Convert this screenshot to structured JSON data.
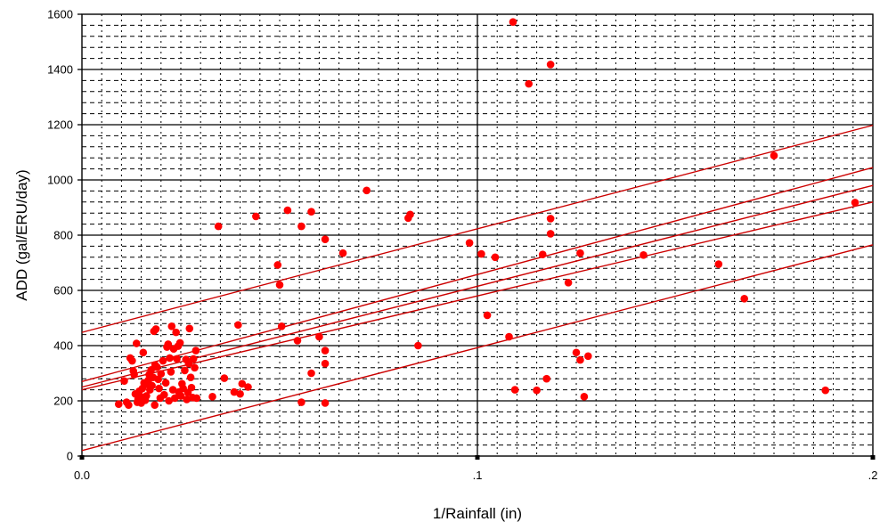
{
  "chart_data": {
    "type": "scatter",
    "title": "",
    "xlabel": "1/Rainfall (in)",
    "ylabel": "ADD (gal/ERU/day)",
    "xlim": [
      0,
      0.2
    ],
    "ylim": [
      0,
      1600
    ],
    "x_ticks": [
      {
        "value": 0.0,
        "label": "0.0"
      },
      {
        "value": 0.1,
        "label": ".1"
      },
      {
        "value": 0.2,
        "label": ".2"
      }
    ],
    "y_ticks": [
      {
        "value": 0,
        "label": "0"
      },
      {
        "value": 200,
        "label": "200"
      },
      {
        "value": 400,
        "label": "400"
      },
      {
        "value": 600,
        "label": "600"
      },
      {
        "value": 800,
        "label": "800"
      },
      {
        "value": 1000,
        "label": "1000"
      },
      {
        "value": 1200,
        "label": "1200"
      },
      {
        "value": 1400,
        "label": "1400"
      },
      {
        "value": 1600,
        "label": "1600"
      }
    ],
    "grid": true,
    "colors": {
      "points": "#ff0000",
      "lines": "#cc0000",
      "major_grid": "#000000",
      "minor_grid": "#000000"
    },
    "points": [
      [
        0.0093,
        188
      ],
      [
        0.0107,
        272
      ],
      [
        0.0113,
        195
      ],
      [
        0.0118,
        185
      ],
      [
        0.0122,
        355
      ],
      [
        0.0127,
        345
      ],
      [
        0.013,
        308
      ],
      [
        0.0132,
        295
      ],
      [
        0.0135,
        225
      ],
      [
        0.0138,
        408
      ],
      [
        0.014,
        195
      ],
      [
        0.0142,
        205
      ],
      [
        0.0145,
        235
      ],
      [
        0.0148,
        215
      ],
      [
        0.015,
        192
      ],
      [
        0.0153,
        245
      ],
      [
        0.0155,
        375
      ],
      [
        0.0157,
        265
      ],
      [
        0.016,
        202
      ],
      [
        0.0163,
        218
      ],
      [
        0.0165,
        260
      ],
      [
        0.0168,
        275
      ],
      [
        0.017,
        295
      ],
      [
        0.0172,
        240
      ],
      [
        0.0175,
        312
      ],
      [
        0.0177,
        255
      ],
      [
        0.018,
        285
      ],
      [
        0.0182,
        452
      ],
      [
        0.0184,
        185
      ],
      [
        0.0185,
        330
      ],
      [
        0.0187,
        460
      ],
      [
        0.019,
        322
      ],
      [
        0.0193,
        278
      ],
      [
        0.0195,
        245
      ],
      [
        0.0198,
        210
      ],
      [
        0.02,
        298
      ],
      [
        0.0205,
        345
      ],
      [
        0.0208,
        222
      ],
      [
        0.0212,
        265
      ],
      [
        0.0215,
        395
      ],
      [
        0.0218,
        405
      ],
      [
        0.022,
        200
      ],
      [
        0.0222,
        355
      ],
      [
        0.0225,
        305
      ],
      [
        0.0227,
        470
      ],
      [
        0.023,
        240
      ],
      [
        0.0232,
        388
      ],
      [
        0.0235,
        210
      ],
      [
        0.0238,
        448
      ],
      [
        0.024,
        352
      ],
      [
        0.0243,
        398
      ],
      [
        0.0245,
        232
      ],
      [
        0.0248,
        410
      ],
      [
        0.025,
        218
      ],
      [
        0.0253,
        262
      ],
      [
        0.0256,
        245
      ],
      [
        0.026,
        310
      ],
      [
        0.0263,
        350
      ],
      [
        0.0265,
        205
      ],
      [
        0.0268,
        230
      ],
      [
        0.027,
        335
      ],
      [
        0.0272,
        462
      ],
      [
        0.0275,
        285
      ],
      [
        0.0277,
        248
      ],
      [
        0.028,
        212
      ],
      [
        0.0282,
        352
      ],
      [
        0.0285,
        320
      ],
      [
        0.0288,
        382
      ],
      [
        0.029,
        210
      ],
      [
        0.033,
        215
      ],
      [
        0.0345,
        832
      ],
      [
        0.036,
        282
      ],
      [
        0.0385,
        232
      ],
      [
        0.0395,
        475
      ],
      [
        0.04,
        225
      ],
      [
        0.0405,
        262
      ],
      [
        0.042,
        250
      ],
      [
        0.044,
        868
      ],
      [
        0.0495,
        692
      ],
      [
        0.05,
        620
      ],
      [
        0.0505,
        470
      ],
      [
        0.052,
        890
      ],
      [
        0.0545,
        418
      ],
      [
        0.0555,
        832
      ],
      [
        0.0555,
        195
      ],
      [
        0.058,
        885
      ],
      [
        0.058,
        300
      ],
      [
        0.06,
        432
      ],
      [
        0.0615,
        785
      ],
      [
        0.0615,
        382
      ],
      [
        0.0615,
        335
      ],
      [
        0.0615,
        192
      ],
      [
        0.066,
        735
      ],
      [
        0.072,
        962
      ],
      [
        0.0825,
        862
      ],
      [
        0.083,
        875
      ],
      [
        0.085,
        400
      ],
      [
        0.098,
        772
      ],
      [
        0.101,
        732
      ],
      [
        0.1025,
        510
      ],
      [
        0.1045,
        720
      ],
      [
        0.108,
        432
      ],
      [
        0.109,
        1572
      ],
      [
        0.1095,
        240
      ],
      [
        0.113,
        1348
      ],
      [
        0.115,
        238
      ],
      [
        0.1165,
        730
      ],
      [
        0.1175,
        280
      ],
      [
        0.1185,
        1418
      ],
      [
        0.1185,
        860
      ],
      [
        0.1185,
        805
      ],
      [
        0.123,
        628
      ],
      [
        0.125,
        375
      ],
      [
        0.126,
        348
      ],
      [
        0.126,
        735
      ],
      [
        0.127,
        215
      ],
      [
        0.128,
        362
      ],
      [
        0.142,
        728
      ],
      [
        0.161,
        695
      ],
      [
        0.1675,
        570
      ],
      [
        0.175,
        1088
      ],
      [
        0.188,
        238
      ],
      [
        0.1955,
        918
      ]
    ],
    "lines": [
      {
        "x": [
          0,
          0.2
        ],
        "y": [
          448,
          1198
        ]
      },
      {
        "x": [
          0,
          0.2
        ],
        "y": [
          270,
          1045
        ]
      },
      {
        "x": [
          0,
          0.2
        ],
        "y": [
          250,
          980
        ]
      },
      {
        "x": [
          0,
          0.2
        ],
        "y": [
          240,
          920
        ]
      },
      {
        "x": [
          0,
          0.2
        ],
        "y": [
          20,
          765
        ]
      }
    ]
  }
}
